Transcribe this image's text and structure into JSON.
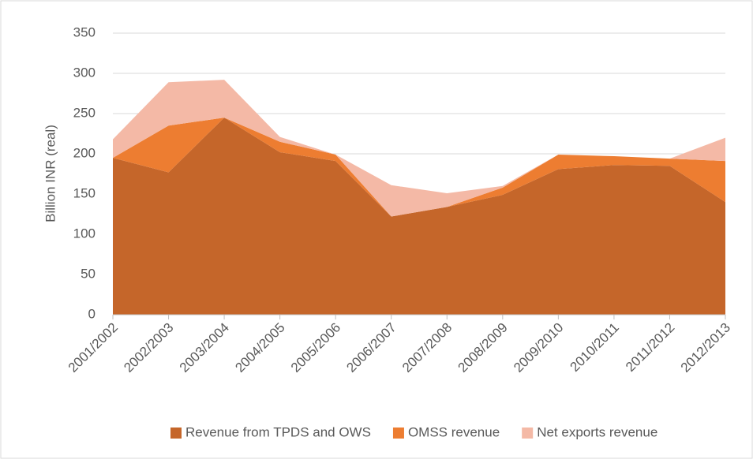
{
  "chart_data": {
    "type": "stacked_area",
    "y_label": "Billion INR (real)",
    "categories": [
      "2001/2002",
      "2002/2003",
      "2003/2004",
      "2004/2005",
      "2005/2006",
      "2006/2007",
      "2007/2008",
      "2008/2009",
      "2009/2010",
      "2010/2011",
      "2011/2012",
      "2012/2013"
    ],
    "series": [
      {
        "name": "Revenue from TPDS and OWS",
        "color": "#c5662a",
        "values": [
          195,
          177,
          245,
          202,
          191,
          122,
          134,
          149,
          181,
          186,
          185,
          140
        ]
      },
      {
        "name": "OMSS revenue",
        "color": "#ed7d31",
        "values": [
          0,
          58,
          0,
          13,
          8,
          0,
          0,
          9,
          18,
          11,
          9,
          51
        ]
      },
      {
        "name": "Net exports revenue",
        "color": "#f4b9a6",
        "values": [
          23,
          54,
          47,
          6,
          0,
          39,
          17,
          2,
          0,
          0,
          0,
          29
        ]
      }
    ],
    "ylim": [
      0,
      350
    ],
    "yticks": [
      0,
      50,
      100,
      150,
      200,
      250,
      300,
      350
    ],
    "grid": true,
    "legend": "bottom"
  }
}
